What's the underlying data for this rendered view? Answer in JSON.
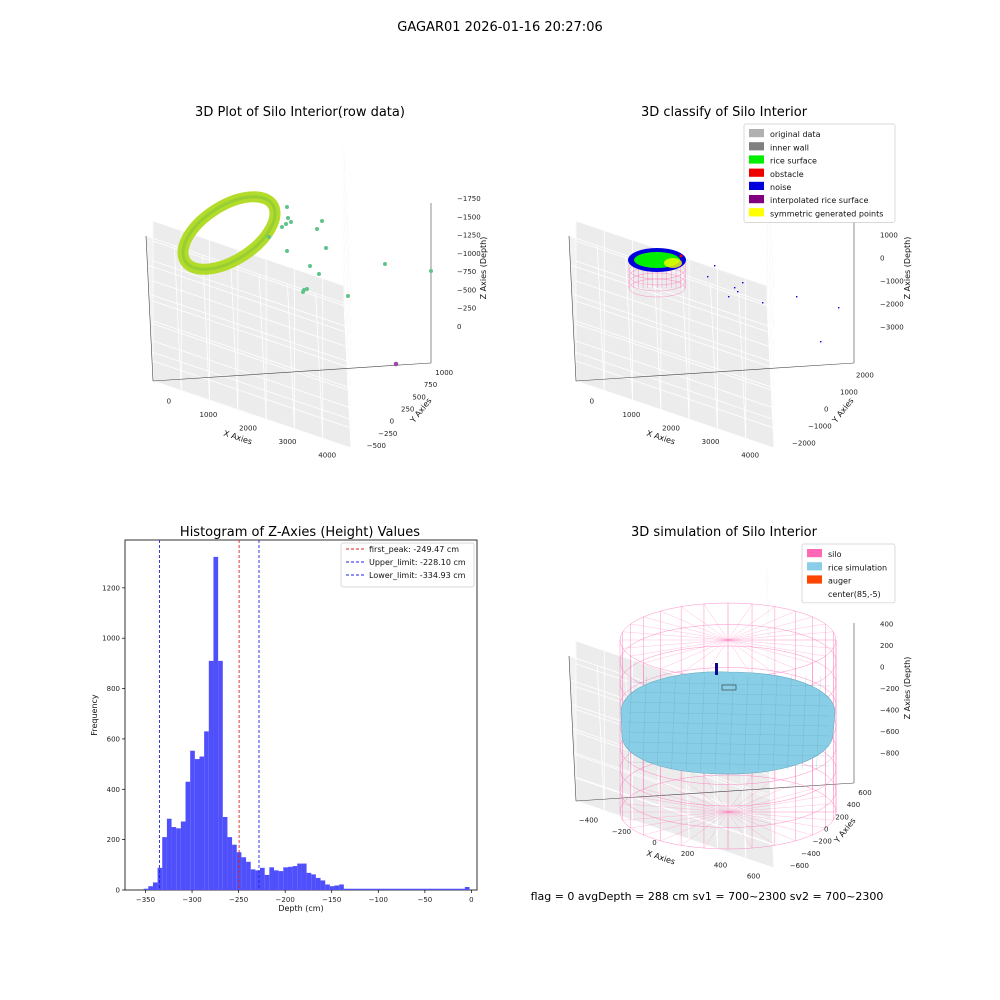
{
  "suptitle": "GAGAR01 2026-01-16 20:27:06",
  "status_line": "flag = 0     avgDepth = 288 cm  sv1 = 700~2300  sv2 = 700~2300",
  "chart_data": [
    {
      "type": "scatter3d",
      "title": "3D Plot of Silo Interior(row data)",
      "xlabel": "X Axies",
      "ylabel": "Y Axies",
      "zlabel": "Z Axies (Depth)",
      "xticks": [
        "0",
        "1000",
        "2000",
        "3000",
        "4000"
      ],
      "yticks": [
        "−500",
        "−250",
        "0",
        "250",
        "500",
        "750",
        "1000"
      ],
      "zticks": [
        "0",
        "−250",
        "−500",
        "−750",
        "−1000",
        "−1250",
        "−1500",
        "−1750"
      ],
      "colors": {
        "ring": "#b3dc2a",
        "scatter": "#5fc48a",
        "outlier": "#9b4aa8"
      }
    },
    {
      "type": "scatter3d",
      "title": "3D classify of Silo Interior",
      "xlabel": "X Axies",
      "ylabel": "Y Axies",
      "zlabel": "Z Axies (Depth)",
      "xticks": [
        "0",
        "1000",
        "2000",
        "3000",
        "4000"
      ],
      "yticks": [
        "−2000",
        "−1000",
        "0",
        "1000",
        "2000"
      ],
      "zticks": [
        "1000",
        "0",
        "−1000",
        "−2000",
        "−3000"
      ],
      "legend": [
        {
          "label": "original data",
          "color": "#b0b0b0"
        },
        {
          "label": "inner wall",
          "color": "#808080"
        },
        {
          "label": "rice surface",
          "color": "#00ee00"
        },
        {
          "label": "obstacle",
          "color": "#ee0000"
        },
        {
          "label": "noise",
          "color": "#0000dd"
        },
        {
          "label": "interpolated rice surface",
          "color": "#800080"
        },
        {
          "label": "symmetric generated points",
          "color": "#ffff00"
        }
      ]
    },
    {
      "type": "bar",
      "title": "Histogram of Z-Axies (Height) Values",
      "xlabel": "Depth (cm)",
      "ylabel": "Frequency",
      "xlim": [
        -372,
        6
      ],
      "ylim": [
        0,
        1390
      ],
      "xticks": [
        -350,
        -300,
        -250,
        -200,
        -150,
        -100,
        -50,
        0
      ],
      "yticks": [
        0,
        200,
        400,
        600,
        800,
        1000,
        1200
      ],
      "bin_width": 5,
      "bin_starts": [
        -352,
        -347,
        -342,
        -337,
        -332,
        -327,
        -322,
        -317,
        -312,
        -307,
        -302,
        -297,
        -292,
        -287,
        -282,
        -277,
        -272,
        -267,
        -262,
        -257,
        -252,
        -247,
        -242,
        -237,
        -232,
        -227,
        -222,
        -217,
        -212,
        -207,
        -202,
        -197,
        -192,
        -187,
        -182,
        -177,
        -172,
        -167,
        -162,
        -157,
        -152,
        -147,
        -142,
        -137,
        -132,
        -127,
        -122,
        -117,
        -112,
        -107,
        -102,
        -97,
        -92,
        -87,
        -82,
        -77,
        -72,
        -67,
        -62,
        -57,
        -52,
        -47,
        -42,
        -37,
        -32,
        -27,
        -22,
        -17,
        -12,
        -7,
        -2
      ],
      "values": [
        5,
        15,
        30,
        88,
        210,
        283,
        250,
        245,
        272,
        430,
        553,
        520,
        530,
        630,
        910,
        1323,
        910,
        290,
        210,
        180,
        150,
        130,
        112,
        82,
        78,
        88,
        60,
        90,
        78,
        75,
        90,
        92,
        95,
        105,
        105,
        68,
        62,
        48,
        38,
        22,
        15,
        18,
        22,
        5,
        5,
        5,
        5,
        5,
        5,
        5,
        5,
        5,
        5,
        5,
        5,
        5,
        5,
        5,
        5,
        5,
        5,
        5,
        5,
        5,
        5,
        5,
        5,
        5,
        5,
        12,
        0
      ],
      "bar_color": "#4f4ffb",
      "vlines": [
        {
          "label": "first_peak: -249.47 cm",
          "x": -249.47,
          "color": "#dd2222"
        },
        {
          "label": "Upper_limit: -228.10 cm",
          "x": -228.1,
          "color": "#2222dd"
        },
        {
          "label": "Lower_limit: -334.93 cm",
          "x": -334.93,
          "color": "#2222dd"
        }
      ]
    },
    {
      "type": "surface3d",
      "title": "3D simulation of Silo Interior",
      "xlabel": "X Axies",
      "ylabel": "Y Axies",
      "zlabel": "Z Axies (Depth)",
      "xticks": [
        "−400",
        "−200",
        "0",
        "200",
        "400",
        "600"
      ],
      "yticks": [
        "−600",
        "−400",
        "−200",
        "0",
        "200",
        "400",
        "600"
      ],
      "zticks": [
        "400",
        "200",
        "0",
        "−200",
        "−400",
        "−600",
        "−800"
      ],
      "legend": [
        {
          "label": "silo",
          "color": "#ff69b4"
        },
        {
          "label": "rice simulation",
          "color": "#87cee6"
        },
        {
          "label": "auger",
          "color": "#ff4500"
        },
        {
          "label": "center(85,-5)",
          "color": ""
        }
      ]
    }
  ]
}
